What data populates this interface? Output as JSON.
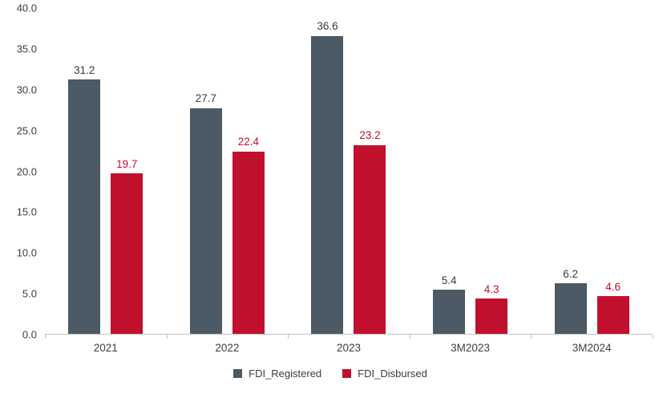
{
  "chart_data": {
    "type": "bar",
    "categories": [
      "2021",
      "2022",
      "2023",
      "3M2023",
      "3M2024"
    ],
    "series": [
      {
        "name": "FDI_Registered",
        "color": "#4b5a64",
        "label_color": "#3a3a3a",
        "values": [
          31.2,
          27.7,
          36.6,
          5.4,
          6.2
        ]
      },
      {
        "name": "FDI_Disbursed",
        "color": "#c1102e",
        "label_color": "#c1102e",
        "values": [
          19.7,
          22.4,
          23.2,
          4.3,
          4.6
        ]
      }
    ],
    "title": "",
    "xlabel": "",
    "ylabel": "",
    "ylim": [
      0,
      40
    ],
    "ytick_step": 5,
    "ytick_labels": [
      "0.0",
      "5.0",
      "10.0",
      "15.0",
      "20.0",
      "25.0",
      "30.0",
      "35.0",
      "40.0"
    ],
    "grid": false,
    "legend_position": "bottom",
    "axis_line_color": "#c2c2c2"
  }
}
